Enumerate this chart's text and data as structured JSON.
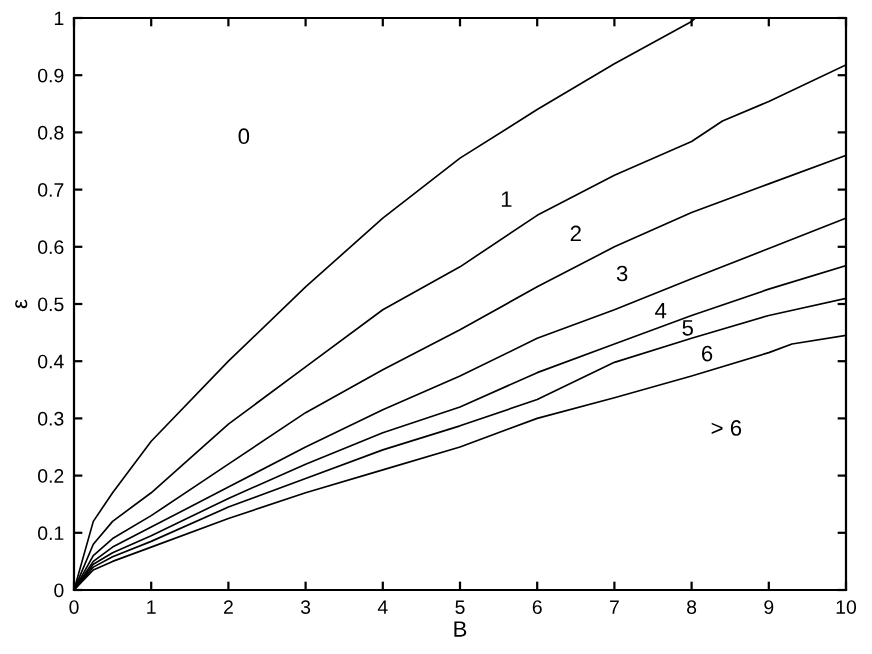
{
  "chart_data": {
    "type": "line",
    "xlabel": "B",
    "ylabel": "ε",
    "xlim": [
      0,
      10
    ],
    "ylim": [
      0,
      1
    ],
    "xticks": [
      0,
      1,
      2,
      3,
      4,
      5,
      6,
      7,
      8,
      9,
      10
    ],
    "yticks": [
      0,
      0.1,
      0.2,
      0.3,
      0.4,
      0.5,
      0.6,
      0.7,
      0.8,
      0.9,
      1
    ],
    "grid": false,
    "marker": "none",
    "line_style": "solid",
    "series": [
      {
        "color": "#000000",
        "x": [
          0,
          0.25,
          0.5,
          1,
          2,
          3,
          4,
          5,
          6,
          7,
          8,
          8.05
        ],
        "values": [
          0,
          0.12,
          0.17,
          0.26,
          0.4,
          0.53,
          0.65,
          0.755,
          0.84,
          0.92,
          0.994,
          1
        ]
      },
      {
        "color": "#000000",
        "x": [
          0,
          0.25,
          0.5,
          1,
          2,
          3,
          4,
          5,
          6,
          7,
          8,
          8.4,
          9,
          10
        ],
        "values": [
          0,
          0.08,
          0.12,
          0.17,
          0.29,
          0.39,
          0.49,
          0.565,
          0.655,
          0.725,
          0.784,
          0.82,
          0.854,
          0.918
        ]
      },
      {
        "color": "#000000",
        "x": [
          0,
          0.25,
          0.5,
          1,
          2,
          3,
          4,
          5,
          6,
          7,
          8,
          9,
          10
        ],
        "values": [
          0,
          0.06,
          0.09,
          0.13,
          0.22,
          0.31,
          0.385,
          0.455,
          0.53,
          0.6,
          0.66,
          0.71,
          0.76
        ]
      },
      {
        "color": "#000000",
        "x": [
          0,
          0.25,
          0.5,
          1,
          2,
          3,
          4,
          5,
          6,
          7,
          8,
          9,
          10
        ],
        "values": [
          0,
          0.05,
          0.075,
          0.11,
          0.18,
          0.25,
          0.315,
          0.374,
          0.44,
          0.49,
          0.544,
          0.597,
          0.65
        ]
      },
      {
        "color": "#000000",
        "x": [
          0,
          0.25,
          0.5,
          1,
          2,
          3,
          4,
          5,
          6,
          7,
          8,
          9,
          10
        ],
        "values": [
          0,
          0.045,
          0.065,
          0.095,
          0.16,
          0.22,
          0.275,
          0.32,
          0.38,
          0.43,
          0.48,
          0.526,
          0.567
        ]
      },
      {
        "color": "#000000",
        "x": [
          0,
          0.25,
          0.5,
          1,
          2,
          3,
          4,
          5,
          6,
          7,
          8,
          9,
          10
        ],
        "values": [
          0,
          0.04,
          0.058,
          0.085,
          0.145,
          0.195,
          0.245,
          0.287,
          0.333,
          0.398,
          0.44,
          0.48,
          0.51
        ]
      },
      {
        "color": "#000000",
        "x": [
          0,
          0.25,
          0.5,
          1,
          2,
          3,
          4,
          5,
          6,
          7,
          8,
          9,
          9.3,
          10
        ],
        "values": [
          0,
          0.035,
          0.05,
          0.075,
          0.125,
          0.17,
          0.21,
          0.25,
          0.3,
          0.336,
          0.374,
          0.415,
          0.43,
          0.445
        ]
      }
    ],
    "annotations": [
      "0",
      "1",
      "2",
      "3",
      "4",
      "5",
      "6",
      "> 6"
    ]
  }
}
